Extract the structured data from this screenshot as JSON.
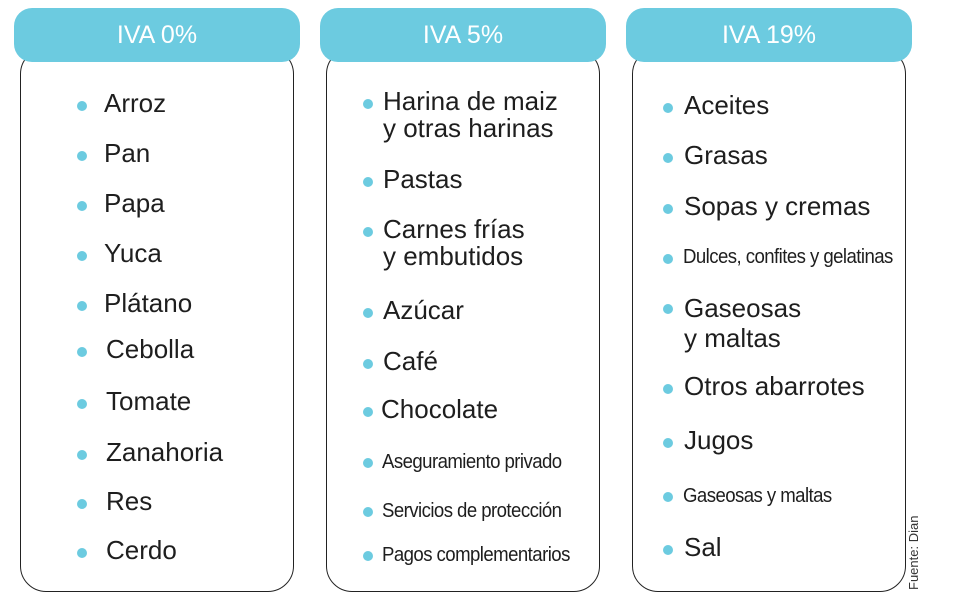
{
  "columns": [
    {
      "header": "IVA 0%",
      "items": [
        "Arroz",
        "Pan",
        "Papa",
        "Yuca",
        "Plátano",
        "Cebolla",
        "Tomate",
        "Zanahoria",
        "Res",
        "Cerdo"
      ]
    },
    {
      "header": "IVA 5%",
      "items": [
        "Harina de maiz\ny otras harinas",
        "Pastas",
        "Carnes frías\ny embutidos",
        "Azúcar",
        "Café",
        "Chocolate",
        "Aseguramiento privado",
        "Servicios de protección",
        "Pagos complementarios"
      ]
    },
    {
      "header": "IVA 19%",
      "items": [
        "Aceites",
        "Grasas",
        "Sopas y cremas",
        "Dulces, confites y gelatinas",
        "Gaseosas\ny maltas",
        "Otros abarrotes",
        "Jugos",
        "Gaseosas y maltas",
        "Sal"
      ]
    }
  ],
  "source": "Fuente: Dian",
  "colors": {
    "accent": "#6ccbe0",
    "border": "#222222",
    "text": "#1e1e1e"
  }
}
